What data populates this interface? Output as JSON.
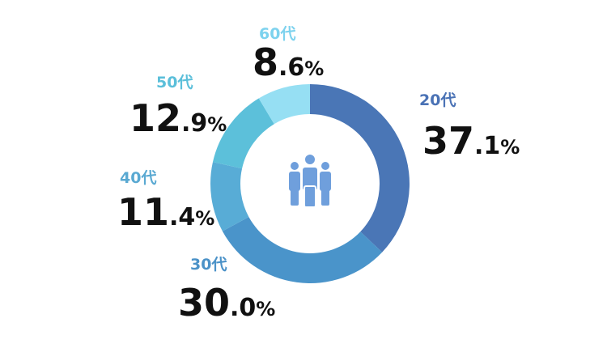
{
  "chart_data": {
    "type": "donut",
    "categories": [
      "20代",
      "30代",
      "40代",
      "50代",
      "60代"
    ],
    "values": [
      37.1,
      30.0,
      11.4,
      12.9,
      8.6
    ],
    "value_labels": [
      "37.1%",
      "30.0%",
      "11.4%",
      "12.9%",
      "8.6%"
    ],
    "colors": [
      "#4a76b6",
      "#4a94ca",
      "#58acd6",
      "#5cc0da",
      "#96dff3"
    ],
    "label_colors": [
      "#4a72b5",
      "#4b92c8",
      "#5aa9d2",
      "#5bbfda",
      "#7dd2ee"
    ]
  }
}
